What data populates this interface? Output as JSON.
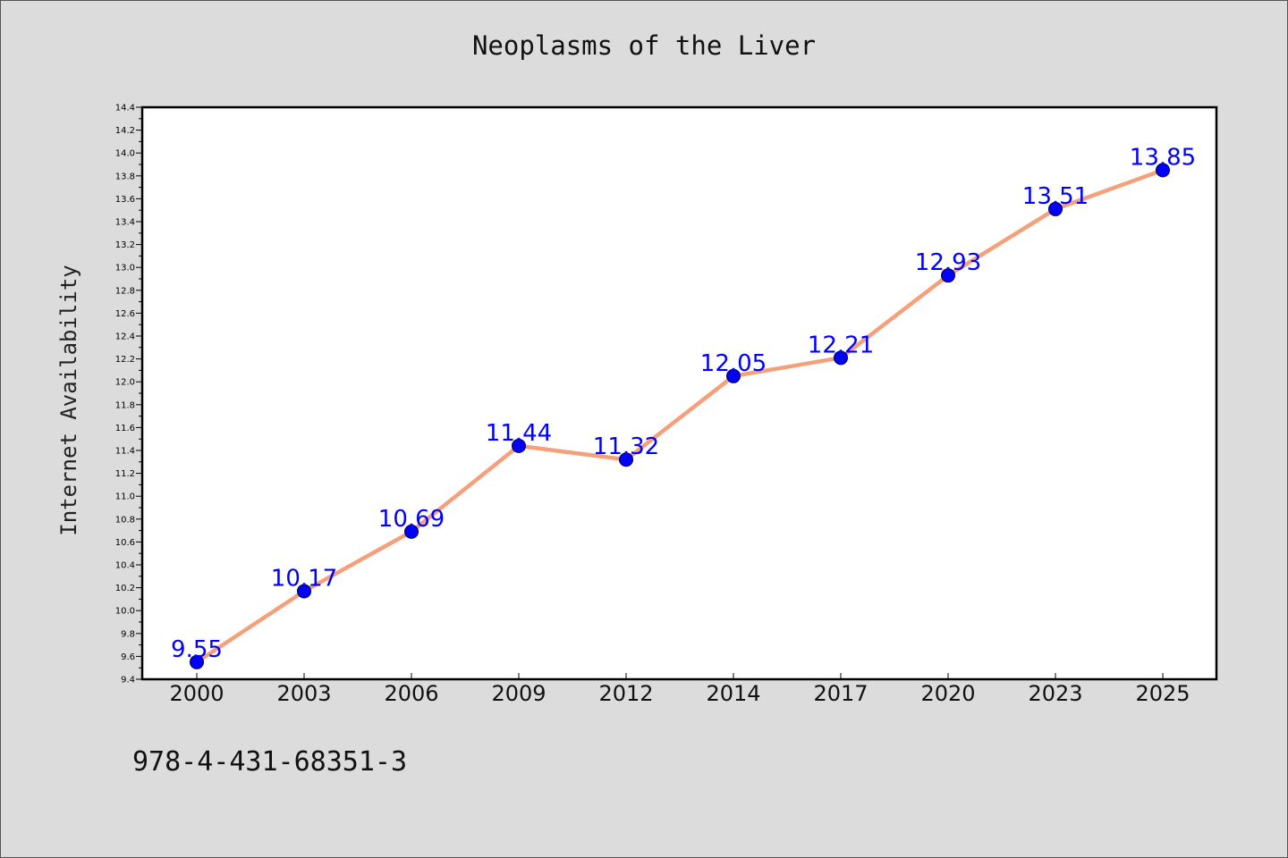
{
  "chart_data": {
    "type": "line",
    "title": "Neoplasms of the Liver",
    "xlabel": "",
    "ylabel": "Internet Availability",
    "categories": [
      "2000",
      "2003",
      "2006",
      "2009",
      "2012",
      "2014",
      "2017",
      "2020",
      "2023",
      "2025"
    ],
    "series": [
      {
        "values": [
          9.55,
          10.17,
          10.69,
          11.44,
          11.32,
          12.05,
          12.21,
          12.93,
          13.51,
          13.85
        ],
        "line_color": "#f4a07a",
        "marker_color": "#0000ff"
      }
    ],
    "ylim": [
      9.4,
      14.4
    ],
    "y_major_ticks": [
      "9.4",
      "9.6",
      "9.8",
      "10.0",
      "10.2",
      "10.4",
      "10.6",
      "10.8",
      "11.0",
      "11.2",
      "11.4",
      "11.6",
      "11.8",
      "12.0",
      "12.2",
      "12.4",
      "12.6",
      "12.8",
      "13.0",
      "13.2",
      "13.4",
      "13.6",
      "13.8",
      "14.0",
      "14.2",
      "14.4"
    ],
    "data_labels": [
      "9.55",
      "10.17",
      "10.69",
      "11.44",
      "11.32",
      "12.05",
      "12.21",
      "12.93",
      "13.51",
      "13.85"
    ],
    "grid": false,
    "legend": "none"
  },
  "footer": {
    "code": "978-4-431-68351-3"
  },
  "colors": {
    "background": "#dcdcdc",
    "plot_background": "#ffffff",
    "line": "#f4a07a",
    "marker": "#0000ff",
    "data_label": "#0000ff"
  }
}
